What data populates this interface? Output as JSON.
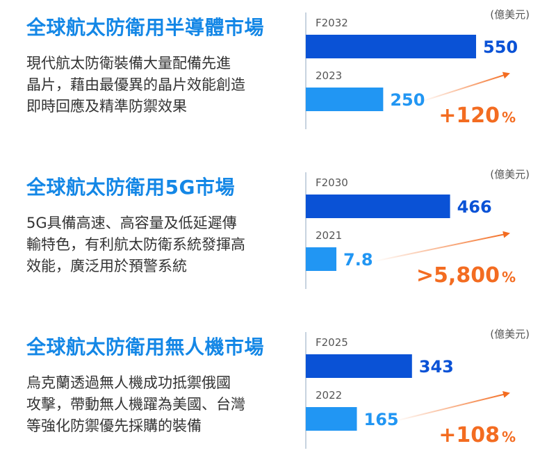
{
  "colors": {
    "title": "#1487e6",
    "bar_dark": "#0a52d6",
    "bar_light": "#2196f3",
    "accent": "#f36c21",
    "axis": "#c7d3df"
  },
  "chart_data": [
    {
      "type": "bar",
      "title": "全球航太防衛用半導體市場",
      "description_lines": [
        "現代航太防衛裝備大量配備先進",
        "晶片，藉由最優異的晶片效能創造",
        "即時回應及精準防禦效果"
      ],
      "unit": "(億美元)",
      "categories": [
        "F2032",
        "2023"
      ],
      "values": [
        550,
        250
      ],
      "value_labels": [
        "550",
        "250"
      ],
      "growth": {
        "prefix": "+",
        "number": "120",
        "suffix": "%"
      }
    },
    {
      "type": "bar",
      "title": "全球航太防衛用5G市場",
      "description_lines": [
        "5G具備高速、高容量及低延遲傳",
        "輸特色，有利航太防衛系統發揮高",
        "效能，廣泛用於預警系統"
      ],
      "unit": "(億美元)",
      "categories": [
        "F2030",
        "2021"
      ],
      "values": [
        466,
        7.8
      ],
      "value_labels": [
        "466",
        "7.8"
      ],
      "growth": {
        "prefix": ">",
        "number": "5,800",
        "suffix": "%"
      }
    },
    {
      "type": "bar",
      "title": "全球航太防衛用無人機市場",
      "description_lines": [
        "烏克蘭透過無人機成功抵禦俄國",
        "攻擊，帶動無人機躍為美國、台灣",
        "等強化防禦優先採購的裝備"
      ],
      "unit": "(億美元)",
      "categories": [
        "F2025",
        "2022"
      ],
      "values": [
        343,
        165
      ],
      "value_labels": [
        "343",
        "165"
      ],
      "growth": {
        "prefix": "+",
        "number": "108",
        "suffix": "%"
      }
    }
  ]
}
